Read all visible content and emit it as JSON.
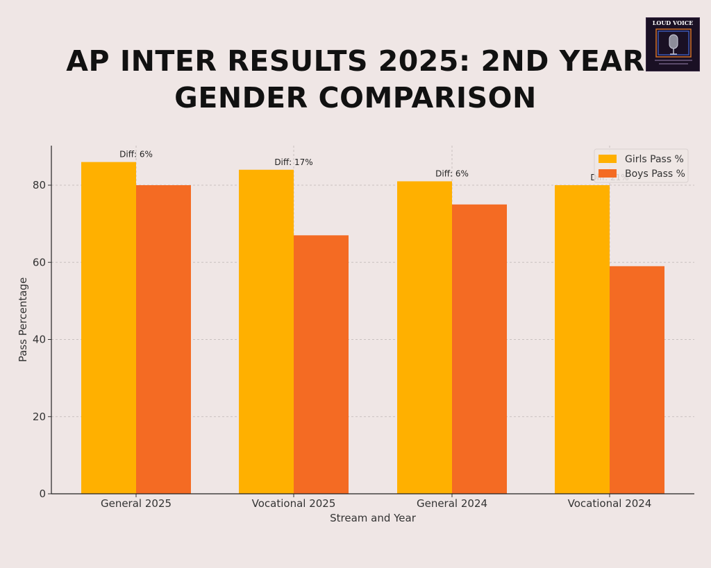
{
  "title_lines": [
    "AP INTER RESULTS 2025: 2ND YEAR",
    "GENDER COMPARISON"
  ],
  "logo": {
    "text": "LOUD VOICE",
    "icon": "microphone-icon"
  },
  "colors": {
    "girls": "#ffb000",
    "boys": "#f46b23",
    "background": "#efe6e5"
  },
  "chart_data": {
    "type": "bar",
    "title": "AP INTER RESULTS 2025: 2ND YEAR GENDER COMPARISON",
    "categories": [
      "General 2025",
      "Vocational 2025",
      "General 2024",
      "Vocational 2024"
    ],
    "series": [
      {
        "name": "Girls Pass %",
        "values": [
          86,
          84,
          81,
          80
        ],
        "color": "#ffb000"
      },
      {
        "name": "Boys Pass %",
        "values": [
          80,
          67,
          75,
          59
        ],
        "color": "#f46b23"
      }
    ],
    "annotations": [
      "Diff: 6%",
      "Diff: 17%",
      "Diff: 6%",
      "Diff: 21%"
    ],
    "xlabel": "Stream and Year",
    "ylabel": "Pass Percentage",
    "ylim": [
      0,
      90
    ],
    "yticks": [
      0,
      20,
      40,
      60,
      80
    ],
    "grid": true,
    "legend": "top-right"
  }
}
